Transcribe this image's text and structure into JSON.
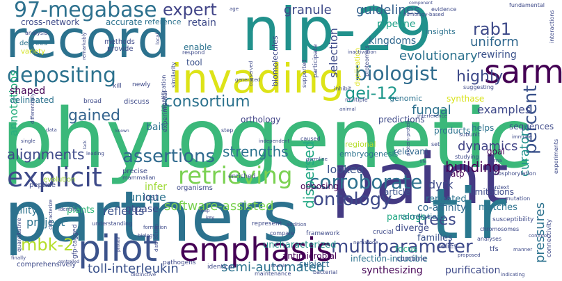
{
  "words": [
    {
      "text": "phylogenetic",
      "color": "#3bb87a"
    },
    {
      "text": "partners",
      "color": "#2c728e"
    },
    {
      "text": "record",
      "color": "#2c728e"
    },
    {
      "text": "nlp-29",
      "color": "#21918c"
    },
    {
      "text": "paint",
      "color": "#443a83"
    },
    {
      "text": "tir",
      "color": "#2a788e"
    },
    {
      "text": "invading",
      "color": "#dde318"
    },
    {
      "text": "pilot",
      "color": "#3b528b"
    },
    {
      "text": "emphasis",
      "color": "#440154"
    },
    {
      "text": "sarm",
      "color": "#440154"
    },
    {
      "text": "explicit",
      "color": "#3e4a89"
    },
    {
      "text": "retrieving",
      "color": "#7ad151"
    },
    {
      "text": "depositing",
      "color": "#2c728e"
    },
    {
      "text": "97-megabase",
      "color": "#2d718e"
    },
    {
      "text": "biologist",
      "color": "#2f6c8e"
    },
    {
      "text": "corroborate",
      "color": "#2d708e"
    },
    {
      "text": "assertions",
      "color": "#306a8e"
    },
    {
      "text": "multiparameter",
      "color": "#3e4a89"
    },
    {
      "text": "percent",
      "color": "#3b528b"
    },
    {
      "text": "ontology",
      "color": "#3e4989"
    },
    {
      "text": "consortium",
      "color": "#2c728e"
    },
    {
      "text": "expert",
      "color": "#414487"
    },
    {
      "text": "rab1",
      "color": "#3e4a89"
    },
    {
      "text": "highly",
      "color": "#3e4a89"
    },
    {
      "text": "gei-12",
      "color": "#1f988b"
    },
    {
      "text": "trees",
      "color": "#3e4989"
    },
    {
      "text": "mbk-2",
      "color": "#b5de2b"
    },
    {
      "text": "gained",
      "color": "#33638d"
    },
    {
      "text": "strengths",
      "color": "#2c728e"
    },
    {
      "text": "alignments",
      "color": "#3e4a89"
    },
    {
      "text": "dispersed",
      "color": "#22a884"
    },
    {
      "text": "building",
      "color": "#440154"
    },
    {
      "text": "toll-interleukin",
      "color": "#3b528b"
    },
    {
      "text": "semi-automated",
      "color": "#2c728e"
    },
    {
      "text": "software-assisted",
      "color": "#7ad151"
    },
    {
      "text": "evolutionary",
      "color": "#2c728e"
    },
    {
      "text": "fungal",
      "color": "#2d708e"
    },
    {
      "text": "dynamics",
      "color": "#414487"
    },
    {
      "text": "pressures",
      "color": "#2c728e"
    },
    {
      "text": "curators",
      "color": "#21918c"
    },
    {
      "text": "uniform",
      "color": "#31688e"
    },
    {
      "text": "guidelines",
      "color": "#35608d"
    },
    {
      "text": "granule",
      "color": "#3e4a89"
    },
    {
      "text": "selection",
      "color": "#3e4a89"
    },
    {
      "text": "annotations",
      "color": "#29af7f"
    },
    {
      "text": "project",
      "color": "#2c728e"
    },
    {
      "text": "reflects",
      "color": "#3b528b"
    },
    {
      "text": "looked",
      "color": "#3b528b"
    },
    {
      "text": "unique",
      "color": "#2c728e"
    },
    {
      "text": "infer",
      "color": "#a0da39"
    },
    {
      "text": "dyrk",
      "color": "#3e4a89"
    },
    {
      "text": "examples",
      "color": "#3e4989"
    },
    {
      "text": "pipeline",
      "color": "#1fa188"
    },
    {
      "text": "retain",
      "color": "#3e4a89"
    },
    {
      "text": "kingdoms",
      "color": "#31688e"
    },
    {
      "text": "reference",
      "color": "#2c728e"
    },
    {
      "text": "accurate",
      "color": "#2c728e"
    },
    {
      "text": "cross-network",
      "color": "#3e4a89"
    },
    {
      "text": "shaped",
      "color": "#440154"
    },
    {
      "text": "delineated",
      "color": "#2c728e"
    },
    {
      "text": "bait",
      "color": "#2c728e"
    },
    {
      "text": "tool",
      "color": "#3b528b"
    },
    {
      "text": "enable",
      "color": "#2c728e"
    },
    {
      "text": "rewiring",
      "color": "#3b528b"
    },
    {
      "text": "gtpase",
      "color": "#3e4a89"
    },
    {
      "text": "lost",
      "color": "#3e4a89"
    },
    {
      "text": "utility",
      "color": "#2c728e"
    },
    {
      "text": "plants",
      "color": "#35b779"
    },
    {
      "text": "co-affinity",
      "color": "#31688e"
    },
    {
      "text": "paralogs",
      "color": "#22a884"
    },
    {
      "text": "diverge",
      "color": "#3e4a89"
    },
    {
      "text": "families",
      "color": "#3b528b"
    },
    {
      "text": "repeated",
      "color": "#2c728e"
    },
    {
      "text": "matches",
      "color": "#2c728e"
    },
    {
      "text": "synthesizing",
      "color": "#440154"
    },
    {
      "text": "purification",
      "color": "#3e4a89"
    },
    {
      "text": "infection-inducible",
      "color": "#2c728e"
    },
    {
      "text": "uncharacterized",
      "color": "#21918c"
    },
    {
      "text": "antimicrobial",
      "color": "#440154"
    },
    {
      "text": "subject",
      "color": "#31688e"
    },
    {
      "text": "focus",
      "color": "#22a884"
    },
    {
      "text": "correlations",
      "color": "#2c728e"
    },
    {
      "text": "predictions",
      "color": "#3e4a89"
    },
    {
      "text": "products",
      "color": "#2c728e"
    },
    {
      "text": "helps",
      "color": "#2c728e"
    },
    {
      "text": "goal",
      "color": "#440154"
    },
    {
      "text": "relevant",
      "color": "#31688e"
    },
    {
      "text": "atp",
      "color": "#440154"
    },
    {
      "text": "opposing",
      "color": "#440154"
    },
    {
      "text": "article",
      "color": "#3b528b"
    },
    {
      "text": "limitations",
      "color": "#3e4a89"
    },
    {
      "text": "embryogenesis",
      "color": "#2c728e"
    },
    {
      "text": "regional",
      "color": "#b5de2b"
    },
    {
      "text": "orthology",
      "color": "#414487"
    },
    {
      "text": "genomic",
      "color": "#2c728e"
    },
    {
      "text": "synthase",
      "color": "#d8e219"
    },
    {
      "text": "sequences",
      "color": "#3e4a89"
    },
    {
      "text": "insights",
      "color": "#2c728e"
    },
    {
      "text": "biomolecules",
      "color": "#3e4a89"
    },
    {
      "text": "methods",
      "color": "#3e4a89"
    },
    {
      "text": "provide",
      "color": "#3e4a89"
    },
    {
      "text": "degrees",
      "color": "#2c728e"
    },
    {
      "text": "variety",
      "color": "#d2e21b"
    },
    {
      "text": "analysis",
      "color": "#3e4a89"
    },
    {
      "text": "remarkably",
      "color": "#3e4a89"
    },
    {
      "text": "broad",
      "color": "#3e4a89"
    },
    {
      "text": "kill",
      "color": "#3e4a89"
    },
    {
      "text": "newly",
      "color": "#3e4a89"
    },
    {
      "text": "discuss",
      "color": "#3e4a89"
    },
    {
      "text": "precise",
      "color": "#3e4a89"
    },
    {
      "text": "mammalian",
      "color": "#3e4a89"
    },
    {
      "text": "evolution",
      "color": "#a0da39"
    },
    {
      "text": "peptide",
      "color": "#3e4a89"
    },
    {
      "text": "organisms",
      "color": "#3e4a89"
    },
    {
      "text": "experimental",
      "color": "#3e4a89"
    },
    {
      "text": "step",
      "color": "#3e4a89"
    },
    {
      "text": "enriched",
      "color": "#3e4a89"
    },
    {
      "text": "caused",
      "color": "#3e4a89"
    },
    {
      "text": "understanding",
      "color": "#3e4a89"
    },
    {
      "text": "biology",
      "color": "#3e4a89"
    },
    {
      "text": "represent",
      "color": "#3e4a89"
    },
    {
      "text": "compare",
      "color": "#3e4a89"
    },
    {
      "text": "framework",
      "color": "#3e4a89"
    },
    {
      "text": "crucial",
      "color": "#3e4a89"
    },
    {
      "text": "pathogens",
      "color": "#3e4a89"
    },
    {
      "text": "identical",
      "color": "#3e4a89"
    },
    {
      "text": "maintenance",
      "color": "#3e4a89"
    },
    {
      "text": "bacterial",
      "color": "#3e4a89"
    },
    {
      "text": "combine",
      "color": "#3e4a89"
    },
    {
      "text": "relies",
      "color": "#3e4a89"
    },
    {
      "text": "tfs",
      "color": "#3e4a89"
    },
    {
      "text": "connectivity",
      "color": "#3e4a89"
    },
    {
      "text": "susceptibility",
      "color": "#3e4a89"
    },
    {
      "text": "mutation",
      "color": "#3e4a89"
    },
    {
      "text": "chromosomes",
      "color": "#3e4a89"
    },
    {
      "text": "analyses",
      "color": "#3e4a89"
    },
    {
      "text": "context",
      "color": "#3e4a89"
    },
    {
      "text": "phosphorylation",
      "color": "#3e4a89"
    },
    {
      "text": "interactions",
      "color": "#3e4a89"
    },
    {
      "text": "fundamental",
      "color": "#3e4a89"
    },
    {
      "text": "component",
      "color": "#3e4a89"
    },
    {
      "text": "evidence",
      "color": "#3e4a89"
    },
    {
      "text": "homology-based",
      "color": "#3e4a89"
    },
    {
      "text": "proteomics",
      "color": "#3e4a89"
    },
    {
      "text": "duplication",
      "color": "#dde318"
    },
    {
      "text": "participate",
      "color": "#3e4a89"
    },
    {
      "text": "supported",
      "color": "#3e4a89"
    },
    {
      "text": "inhibit",
      "color": "#3e4a89"
    },
    {
      "text": "multiple",
      "color": "#3e4a89"
    },
    {
      "text": "suggesting",
      "color": "#3e4a89"
    },
    {
      "text": "animal",
      "color": "#3e4a89"
    },
    {
      "text": "interference",
      "color": "#3e4a89"
    },
    {
      "text": "subunit",
      "color": "#3e4a89"
    },
    {
      "text": "set",
      "color": "#3e4a89"
    },
    {
      "text": "studying",
      "color": "#3e4a89"
    },
    {
      "text": "rna",
      "color": "#3e4a89"
    },
    {
      "text": "immune",
      "color": "#3e4a89"
    },
    {
      "text": "germline",
      "color": "#3e4a89"
    },
    {
      "text": "protein-protein",
      "color": "#3e4a89"
    },
    {
      "text": "independent",
      "color": "#3e4a89"
    },
    {
      "text": "identification",
      "color": "#3e4a89"
    },
    {
      "text": "similarity",
      "color": "#3e4a89"
    },
    {
      "text": "generated",
      "color": "#3e4a89"
    },
    {
      "text": "data",
      "color": "#3e4a89"
    },
    {
      "text": "differentially",
      "color": "#3e4a89"
    },
    {
      "text": "single",
      "color": "#3e4a89"
    },
    {
      "text": "known",
      "color": "#3e4a89"
    },
    {
      "text": "leading",
      "color": "#3e4a89"
    },
    {
      "text": "quantitative",
      "color": "#3e4a89"
    },
    {
      "text": "gfp-tagged",
      "color": "#3e4a89"
    },
    {
      "text": "comprehensively",
      "color": "#3e4a89"
    },
    {
      "text": "distinctive",
      "color": "#3e4a89"
    },
    {
      "text": "reveals",
      "color": "#3e4a89"
    },
    {
      "text": "proposed",
      "color": "#3e4a89"
    },
    {
      "text": "manner",
      "color": "#3e4a89"
    },
    {
      "text": "indicating",
      "color": "#3e4a89"
    },
    {
      "text": "nematode",
      "color": "#3e4a89"
    },
    {
      "text": "addition",
      "color": "#3e4a89"
    },
    {
      "text": "common",
      "color": "#3e4a89"
    },
    {
      "text": "age",
      "color": "#3e4a89"
    },
    {
      "text": "local",
      "color": "#3e4a89"
    },
    {
      "text": "respond",
      "color": "#3e4a89"
    },
    {
      "text": "conserved",
      "color": "#3e4a89"
    },
    {
      "text": "inactivation",
      "color": "#3e4a89"
    },
    {
      "text": "characterize",
      "color": "#3e4a89"
    },
    {
      "text": "identify",
      "color": "#3e4a89"
    },
    {
      "text": "formation",
      "color": "#3e4a89"
    },
    {
      "text": "finally",
      "color": "#3e4a89"
    },
    {
      "text": "distribution",
      "color": "#3e4a89"
    },
    {
      "text": "controlled",
      "color": "#3e4a89"
    },
    {
      "text": "key",
      "color": "#3e4a89"
    },
    {
      "text": "map",
      "color": "#3e4a89"
    },
    {
      "text": "lack",
      "color": "#3e4a89"
    },
    {
      "text": "life",
      "color": "#3e4a89"
    },
    {
      "text": "experiments",
      "color": "#3e4a89"
    },
    {
      "text": "private",
      "color": "#3e4a89"
    }
  ]
}
